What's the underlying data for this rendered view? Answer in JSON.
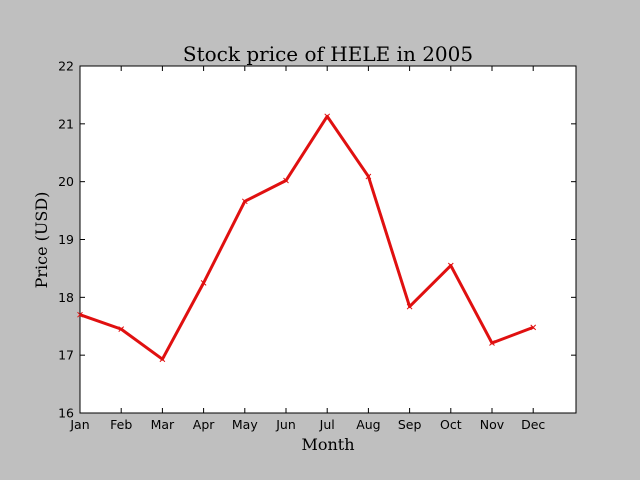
{
  "chart_data": {
    "type": "line",
    "title": "Stock price of HELE in 2005",
    "xlabel": "Month",
    "ylabel": "Price (USD)",
    "categories": [
      "Jan",
      "Feb",
      "Mar",
      "Apr",
      "May",
      "Jun",
      "Jul",
      "Aug",
      "Sep",
      "Oct",
      "Nov",
      "Dec"
    ],
    "series": [
      {
        "values": [
          17.7,
          17.45,
          16.93,
          18.25,
          19.66,
          20.02,
          21.13,
          20.09,
          17.84,
          18.55,
          17.21,
          17.48
        ],
        "color": "#e01010",
        "marker": "x"
      }
    ],
    "ylim": [
      16,
      22
    ],
    "yticks": [
      "16",
      "17",
      "18",
      "19",
      "20",
      "21",
      "22"
    ],
    "grid": false,
    "legend": "none",
    "colors": {
      "background": "#bfbfbf",
      "plot_area": "#ffffff",
      "line": "#e01010"
    }
  }
}
